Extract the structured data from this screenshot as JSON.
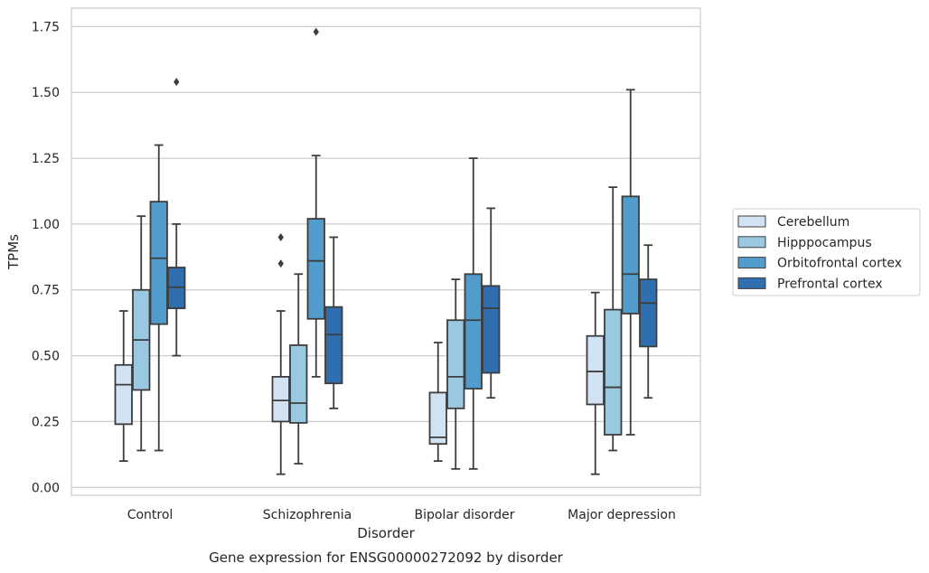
{
  "chart_data": {
    "type": "box",
    "title": "",
    "caption": "Gene expression for ENSG00000272092 by disorder",
    "xlabel": "Disorder",
    "ylabel": "TPMs",
    "ylim": [
      -0.03,
      1.82
    ],
    "yticks": [
      "0.00",
      "0.25",
      "0.50",
      "0.75",
      "1.00",
      "1.25",
      "1.50",
      "1.75"
    ],
    "ytick_values": [
      0,
      0.25,
      0.5,
      0.75,
      1.0,
      1.25,
      1.5,
      1.75
    ],
    "grid": true,
    "legend_position": "right",
    "categories": [
      "Control",
      "Schizophrenia",
      "Bipolar disorder",
      "Major depression"
    ],
    "series": [
      {
        "name": "Cerebellum",
        "color": "#d1e2f2",
        "boxes": [
          {
            "whislo": 0.1,
            "q1": 0.24,
            "med": 0.39,
            "q3": 0.465,
            "whishi": 0.67,
            "fliers": []
          },
          {
            "whislo": 0.05,
            "q1": 0.25,
            "med": 0.33,
            "q3": 0.42,
            "whishi": 0.67,
            "fliers": [
              0.85,
              0.95
            ]
          },
          {
            "whislo": 0.1,
            "q1": 0.165,
            "med": 0.19,
            "q3": 0.36,
            "whishi": 0.55,
            "fliers": []
          },
          {
            "whislo": 0.05,
            "q1": 0.315,
            "med": 0.44,
            "q3": 0.575,
            "whishi": 0.74,
            "fliers": []
          }
        ]
      },
      {
        "name": "Hipppocampus",
        "color": "#9ac8e0",
        "boxes": [
          {
            "whislo": 0.14,
            "q1": 0.37,
            "med": 0.56,
            "q3": 0.75,
            "whishi": 1.03,
            "fliers": []
          },
          {
            "whislo": 0.09,
            "q1": 0.245,
            "med": 0.32,
            "q3": 0.54,
            "whishi": 0.81,
            "fliers": []
          },
          {
            "whislo": 0.07,
            "q1": 0.3,
            "med": 0.42,
            "q3": 0.635,
            "whishi": 0.79,
            "fliers": []
          },
          {
            "whislo": 0.14,
            "q1": 0.2,
            "med": 0.38,
            "q3": 0.675,
            "whishi": 1.14,
            "fliers": []
          }
        ]
      },
      {
        "name": "Orbitofrontal cortex",
        "color": "#519ccc",
        "boxes": [
          {
            "whislo": 0.14,
            "q1": 0.62,
            "med": 0.87,
            "q3": 1.085,
            "whishi": 1.3,
            "fliers": []
          },
          {
            "whislo": 0.42,
            "q1": 0.64,
            "med": 0.86,
            "q3": 1.02,
            "whishi": 1.26,
            "fliers": [
              1.73
            ]
          },
          {
            "whislo": 0.07,
            "q1": 0.375,
            "med": 0.635,
            "q3": 0.81,
            "whishi": 1.25,
            "fliers": []
          },
          {
            "whislo": 0.2,
            "q1": 0.66,
            "med": 0.81,
            "q3": 1.105,
            "whishi": 1.51,
            "fliers": []
          }
        ]
      },
      {
        "name": "Prefrontal cortex",
        "color": "#2f6faf",
        "boxes": [
          {
            "whislo": 0.5,
            "q1": 0.68,
            "med": 0.76,
            "q3": 0.835,
            "whishi": 1.0,
            "fliers": [
              1.54
            ]
          },
          {
            "whislo": 0.3,
            "q1": 0.395,
            "med": 0.58,
            "q3": 0.685,
            "whishi": 0.95,
            "fliers": []
          },
          {
            "whislo": 0.34,
            "q1": 0.435,
            "med": 0.68,
            "q3": 0.765,
            "whishi": 1.06,
            "fliers": []
          },
          {
            "whislo": 0.34,
            "q1": 0.535,
            "med": 0.7,
            "q3": 0.79,
            "whishi": 0.92,
            "fliers": []
          }
        ]
      }
    ]
  }
}
